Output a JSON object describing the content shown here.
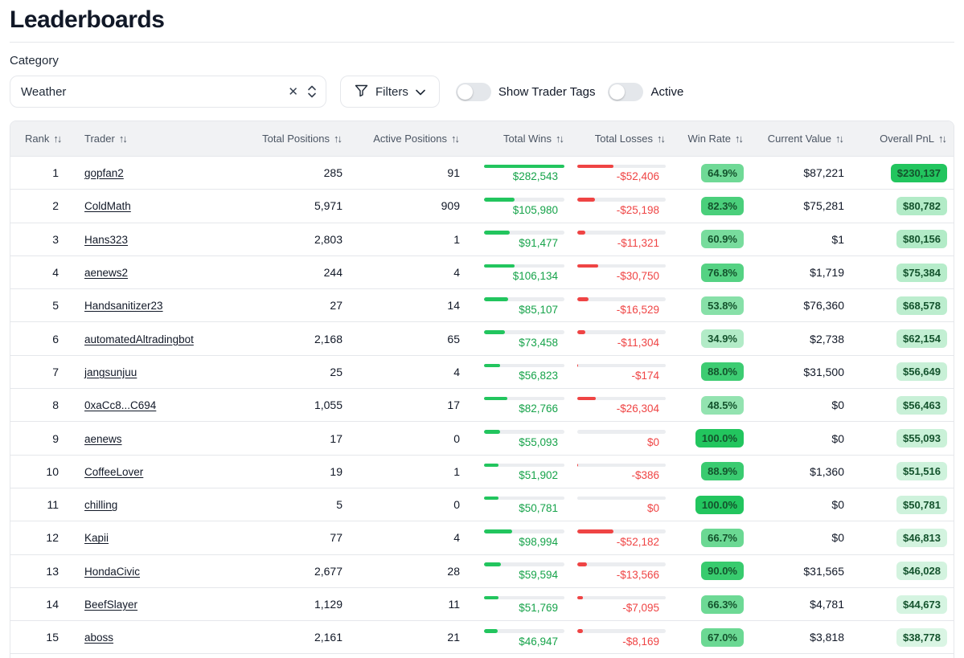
{
  "page": {
    "title": "Leaderboards"
  },
  "filters_bar": {
    "category_label": "Category",
    "category_value": "Weather",
    "clear_icon": "✕",
    "filters_label": "Filters",
    "toggles": [
      {
        "label": "Show Trader Tags",
        "on": false
      },
      {
        "label": "Active",
        "on": false
      }
    ]
  },
  "colors": {
    "win_green": "#22c55e",
    "loss_red": "#ef4444",
    "badge_text_green": "#14532d"
  },
  "table": {
    "sort_icon": "↑↓",
    "columns": [
      {
        "label": "Rank"
      },
      {
        "label": "Trader"
      },
      {
        "label": "Total Positions"
      },
      {
        "label": "Active Positions"
      },
      {
        "label": "Total Wins"
      },
      {
        "label": "Total Losses"
      },
      {
        "label": "Win Rate"
      },
      {
        "label": "Current Value"
      },
      {
        "label": "Overall PnL"
      }
    ],
    "rows": [
      {
        "rank": "1",
        "trader": "gopfan2",
        "total_positions": "285",
        "active_positions": "91",
        "total_wins": "$282,543",
        "win_bar_pct": 100,
        "total_losses": "-$52,406",
        "loss_bar_pct": 41,
        "win_rate": "64.9%",
        "win_rate_alpha": 0.65,
        "current_value": "$87,221",
        "pnl": "$230,137",
        "pnl_alpha": 1.0
      },
      {
        "rank": "2",
        "trader": "ColdMath",
        "total_positions": "5,971",
        "active_positions": "909",
        "total_wins": "$105,980",
        "win_bar_pct": 37.5,
        "total_losses": "-$25,198",
        "loss_bar_pct": 20,
        "win_rate": "82.3%",
        "win_rate_alpha": 0.82,
        "current_value": "$75,281",
        "pnl": "$80,782",
        "pnl_alpha": 0.35
      },
      {
        "rank": "3",
        "trader": "Hans323",
        "total_positions": "2,803",
        "active_positions": "1",
        "total_wins": "$91,477",
        "win_bar_pct": 32.4,
        "total_losses": "-$11,321",
        "loss_bar_pct": 9,
        "win_rate": "60.9%",
        "win_rate_alpha": 0.61,
        "current_value": "$1",
        "pnl": "$80,156",
        "pnl_alpha": 0.35
      },
      {
        "rank": "4",
        "trader": "aenews2",
        "total_positions": "244",
        "active_positions": "4",
        "total_wins": "$106,134",
        "win_bar_pct": 37.6,
        "total_losses": "-$30,750",
        "loss_bar_pct": 24,
        "win_rate": "76.8%",
        "win_rate_alpha": 0.77,
        "current_value": "$1,719",
        "pnl": "$75,384",
        "pnl_alpha": 0.33
      },
      {
        "rank": "5",
        "trader": "Handsanitizer23",
        "total_positions": "27",
        "active_positions": "14",
        "total_wins": "$85,107",
        "win_bar_pct": 30.1,
        "total_losses": "-$16,529",
        "loss_bar_pct": 13,
        "win_rate": "53.8%",
        "win_rate_alpha": 0.54,
        "current_value": "$76,360",
        "pnl": "$68,578",
        "pnl_alpha": 0.3
      },
      {
        "rank": "6",
        "trader": "automatedAltradingbot",
        "total_positions": "2,168",
        "active_positions": "65",
        "total_wins": "$73,458",
        "win_bar_pct": 26.0,
        "total_losses": "-$11,304",
        "loss_bar_pct": 9,
        "win_rate": "34.9%",
        "win_rate_alpha": 0.35,
        "current_value": "$2,738",
        "pnl": "$62,154",
        "pnl_alpha": 0.27
      },
      {
        "rank": "7",
        "trader": "jangsunjuu",
        "total_positions": "25",
        "active_positions": "4",
        "total_wins": "$56,823",
        "win_bar_pct": 20.1,
        "total_losses": "-$174",
        "loss_bar_pct": 1,
        "win_rate": "88.0%",
        "win_rate_alpha": 0.88,
        "current_value": "$31,500",
        "pnl": "$56,649",
        "pnl_alpha": 0.25
      },
      {
        "rank": "8",
        "trader": "0xaCc8...C694",
        "total_positions": "1,055",
        "active_positions": "17",
        "total_wins": "$82,766",
        "win_bar_pct": 29.3,
        "total_losses": "-$26,304",
        "loss_bar_pct": 21,
        "win_rate": "48.5%",
        "win_rate_alpha": 0.49,
        "current_value": "$0",
        "pnl": "$56,463",
        "pnl_alpha": 0.25
      },
      {
        "rank": "9",
        "trader": "aenews",
        "total_positions": "17",
        "active_positions": "0",
        "total_wins": "$55,093",
        "win_bar_pct": 19.5,
        "total_losses": "$0",
        "loss_bar_pct": 0,
        "win_rate": "100.0%",
        "win_rate_alpha": 1.0,
        "current_value": "$0",
        "pnl": "$55,093",
        "pnl_alpha": 0.24
      },
      {
        "rank": "10",
        "trader": "CoffeeLover",
        "total_positions": "19",
        "active_positions": "1",
        "total_wins": "$51,902",
        "win_bar_pct": 18.4,
        "total_losses": "-$386",
        "loss_bar_pct": 1,
        "win_rate": "88.9%",
        "win_rate_alpha": 0.89,
        "current_value": "$1,360",
        "pnl": "$51,516",
        "pnl_alpha": 0.22
      },
      {
        "rank": "11",
        "trader": "chilling",
        "total_positions": "5",
        "active_positions": "0",
        "total_wins": "$50,781",
        "win_bar_pct": 18.0,
        "total_losses": "$0",
        "loss_bar_pct": 0,
        "win_rate": "100.0%",
        "win_rate_alpha": 1.0,
        "current_value": "$0",
        "pnl": "$50,781",
        "pnl_alpha": 0.22
      },
      {
        "rank": "12",
        "trader": "Kapii",
        "total_positions": "77",
        "active_positions": "4",
        "total_wins": "$98,994",
        "win_bar_pct": 35.0,
        "total_losses": "-$52,182",
        "loss_bar_pct": 41,
        "win_rate": "66.7%",
        "win_rate_alpha": 0.67,
        "current_value": "$0",
        "pnl": "$46,813",
        "pnl_alpha": 0.2
      },
      {
        "rank": "13",
        "trader": "HondaCivic",
        "total_positions": "2,677",
        "active_positions": "28",
        "total_wins": "$59,594",
        "win_bar_pct": 21.1,
        "total_losses": "-$13,566",
        "loss_bar_pct": 11,
        "win_rate": "90.0%",
        "win_rate_alpha": 0.9,
        "current_value": "$31,565",
        "pnl": "$46,028",
        "pnl_alpha": 0.2
      },
      {
        "rank": "14",
        "trader": "BeefSlayer",
        "total_positions": "1,129",
        "active_positions": "11",
        "total_wins": "$51,769",
        "win_bar_pct": 18.3,
        "total_losses": "-$7,095",
        "loss_bar_pct": 6,
        "win_rate": "66.3%",
        "win_rate_alpha": 0.66,
        "current_value": "$4,781",
        "pnl": "$44,673",
        "pnl_alpha": 0.19
      },
      {
        "rank": "15",
        "trader": "aboss",
        "total_positions": "2,161",
        "active_positions": "21",
        "total_wins": "$46,947",
        "win_bar_pct": 16.6,
        "total_losses": "-$8,169",
        "loss_bar_pct": 6,
        "win_rate": "67.0%",
        "win_rate_alpha": 0.67,
        "current_value": "$3,818",
        "pnl": "$38,778",
        "pnl_alpha": 0.17
      }
    ]
  }
}
